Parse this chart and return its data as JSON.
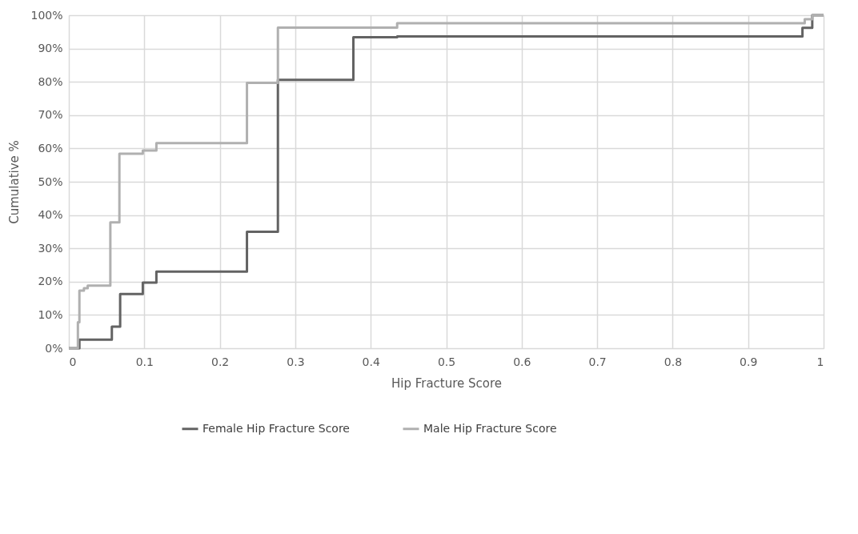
{
  "chart_data": {
    "type": "step",
    "xlabel": "Hip Fracture Score",
    "ylabel": "Cumulative %",
    "xlim": [
      0,
      1
    ],
    "xticks": [
      0,
      0.1,
      0.2,
      0.3,
      0.4,
      0.5,
      0.6,
      0.7,
      0.8,
      0.9,
      1
    ],
    "ylim": [
      0,
      100
    ],
    "yticks": [
      {
        "value": 0,
        "label": "0%"
      },
      {
        "value": 10,
        "label": "10%"
      },
      {
        "value": 20,
        "label": "20%"
      },
      {
        "value": 30,
        "label": "30%"
      },
      {
        "value": 40,
        "label": "40%"
      },
      {
        "value": 50,
        "label": "50%"
      },
      {
        "value": 60,
        "label": "60%"
      },
      {
        "value": 70,
        "label": "70%"
      },
      {
        "value": 80,
        "label": "80%"
      },
      {
        "value": 90,
        "label": "90%"
      },
      {
        "value": 100,
        "label": "100%"
      }
    ],
    "grid": true,
    "legend": "bottom",
    "line_style": "solid",
    "marker": "none",
    "series": [
      {
        "name": "Female Hip Fracture Score",
        "color": "#636363",
        "x": [
          0,
          0.014,
          0.057,
          0.068,
          0.098,
          0.116,
          0.236,
          0.277,
          0.377,
          0.435,
          0.972,
          0.985,
          1
        ],
        "values": [
          0,
          2.6,
          6.5,
          16.3,
          19.7,
          23,
          35,
          80.6,
          93.4,
          93.6,
          96.2,
          100,
          100
        ]
      },
      {
        "name": "Male Hip Fracture Score",
        "color": "#b0b0b0",
        "x": [
          0,
          0.012,
          0.014,
          0.02,
          0.025,
          0.055,
          0.067,
          0.098,
          0.116,
          0.236,
          0.277,
          0.435,
          0.975,
          0.985,
          1
        ],
        "values": [
          0,
          7.8,
          17.3,
          18,
          18.8,
          37.8,
          58.4,
          59.4,
          61.6,
          79.7,
          96.3,
          97.6,
          98.8,
          100,
          100
        ]
      }
    ]
  }
}
